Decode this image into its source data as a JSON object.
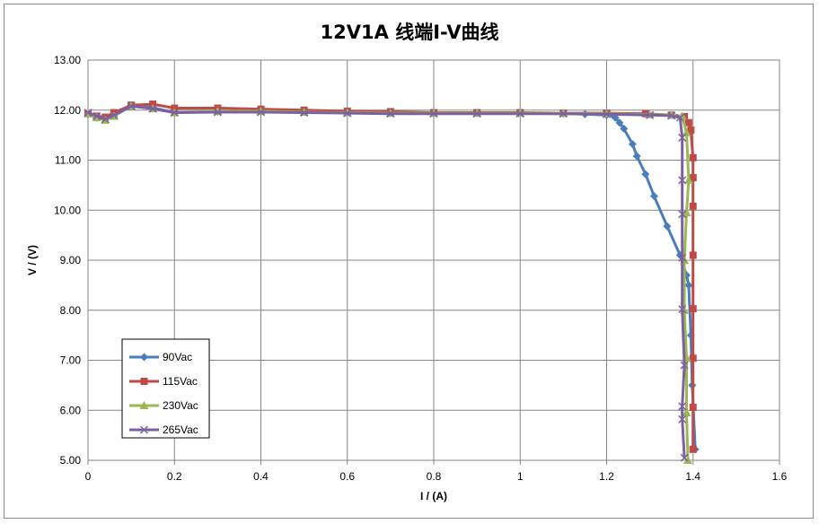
{
  "chart_data": {
    "type": "line",
    "title": "12V1A 线端I-V曲线",
    "xlabel": "I / (A)",
    "ylabel": "V / (V)",
    "xlim": [
      0,
      1.6
    ],
    "ylim": [
      5,
      13
    ],
    "x_ticks": [
      {
        "value": 0,
        "label": "0"
      },
      {
        "value": 0.2,
        "label": "0.2"
      },
      {
        "value": 0.4,
        "label": "0.4"
      },
      {
        "value": 0.6,
        "label": "0.6"
      },
      {
        "value": 0.8,
        "label": "0.8"
      },
      {
        "value": 1,
        "label": "1"
      },
      {
        "value": 1.2,
        "label": "1.2"
      },
      {
        "value": 1.4,
        "label": "1.4"
      },
      {
        "value": 1.6,
        "label": "1.6"
      }
    ],
    "y_ticks": [
      {
        "value": 5,
        "label": "5.00"
      },
      {
        "value": 6,
        "label": "6.00"
      },
      {
        "value": 7,
        "label": "7.00"
      },
      {
        "value": 8,
        "label": "8.00"
      },
      {
        "value": 9,
        "label": "9.00"
      },
      {
        "value": 10,
        "label": "10.00"
      },
      {
        "value": 11,
        "label": "11.00"
      },
      {
        "value": 12,
        "label": "12.00"
      },
      {
        "value": 13,
        "label": "13.00"
      }
    ],
    "grid": true,
    "legend_position": "bottom-left",
    "series": [
      {
        "name": "90Vac",
        "color": "#4a7ebb",
        "marker": "diamond",
        "points": [
          [
            0,
            11.92
          ],
          [
            0.02,
            11.85
          ],
          [
            0.04,
            11.82
          ],
          [
            0.06,
            11.88
          ],
          [
            0.1,
            12.1
          ],
          [
            0.15,
            12.05
          ],
          [
            0.2,
            11.95
          ],
          [
            0.3,
            11.97
          ],
          [
            0.4,
            11.97
          ],
          [
            0.5,
            11.96
          ],
          [
            0.6,
            11.95
          ],
          [
            0.7,
            11.94
          ],
          [
            0.8,
            11.94
          ],
          [
            0.9,
            11.94
          ],
          [
            1.0,
            11.94
          ],
          [
            1.1,
            11.93
          ],
          [
            1.15,
            11.92
          ],
          [
            1.2,
            11.9
          ],
          [
            1.22,
            11.85
          ],
          [
            1.23,
            11.75
          ],
          [
            1.24,
            11.63
          ],
          [
            1.26,
            11.32
          ],
          [
            1.27,
            11.08
          ],
          [
            1.29,
            10.72
          ],
          [
            1.31,
            10.28
          ],
          [
            1.34,
            9.68
          ],
          [
            1.37,
            9.1
          ],
          [
            1.385,
            8.7
          ],
          [
            1.39,
            8.5
          ],
          [
            1.395,
            7.5
          ],
          [
            1.398,
            6.5
          ],
          [
            1.405,
            5.22
          ]
        ]
      },
      {
        "name": "115Vac",
        "color": "#be4b48",
        "marker": "square",
        "points": [
          [
            0,
            11.93
          ],
          [
            0.02,
            11.88
          ],
          [
            0.04,
            11.86
          ],
          [
            0.06,
            11.95
          ],
          [
            0.1,
            12.1
          ],
          [
            0.15,
            12.12
          ],
          [
            0.2,
            12.04
          ],
          [
            0.3,
            12.04
          ],
          [
            0.4,
            12.02
          ],
          [
            0.5,
            12.0
          ],
          [
            0.6,
            11.98
          ],
          [
            0.7,
            11.97
          ],
          [
            0.8,
            11.95
          ],
          [
            0.9,
            11.95
          ],
          [
            1.0,
            11.95
          ],
          [
            1.1,
            11.94
          ],
          [
            1.2,
            11.94
          ],
          [
            1.29,
            11.93
          ],
          [
            1.35,
            11.9
          ],
          [
            1.38,
            11.87
          ],
          [
            1.39,
            11.75
          ],
          [
            1.395,
            11.6
          ],
          [
            1.4,
            11.05
          ],
          [
            1.4,
            10.65
          ],
          [
            1.4,
            10.08
          ],
          [
            1.4,
            9.1
          ],
          [
            1.4,
            8.03
          ],
          [
            1.4,
            7.04
          ],
          [
            1.4,
            6.06
          ],
          [
            1.4,
            5.22
          ]
        ]
      },
      {
        "name": "230Vac",
        "color": "#98b954",
        "marker": "triangle",
        "points": [
          [
            0,
            11.93
          ],
          [
            0.02,
            11.85
          ],
          [
            0.04,
            11.8
          ],
          [
            0.06,
            11.88
          ],
          [
            0.1,
            12.08
          ],
          [
            0.15,
            12.03
          ],
          [
            0.2,
            11.95
          ],
          [
            0.3,
            11.98
          ],
          [
            0.4,
            11.98
          ],
          [
            0.5,
            11.96
          ],
          [
            0.6,
            11.95
          ],
          [
            0.7,
            11.94
          ],
          [
            0.8,
            11.94
          ],
          [
            0.9,
            11.94
          ],
          [
            1.0,
            11.94
          ],
          [
            1.1,
            11.94
          ],
          [
            1.2,
            11.93
          ],
          [
            1.3,
            11.91
          ],
          [
            1.35,
            11.9
          ],
          [
            1.375,
            11.88
          ],
          [
            1.385,
            11.55
          ],
          [
            1.39,
            10.6
          ],
          [
            1.385,
            9.95
          ],
          [
            1.38,
            9.0
          ],
          [
            1.38,
            8.0
          ],
          [
            1.385,
            7.05
          ],
          [
            1.385,
            5.95
          ],
          [
            1.388,
            5.0
          ]
        ]
      },
      {
        "name": "265Vac",
        "color": "#7d60a0",
        "marker": "x",
        "points": [
          [
            0,
            11.95
          ],
          [
            0.02,
            11.88
          ],
          [
            0.04,
            11.82
          ],
          [
            0.06,
            11.9
          ],
          [
            0.1,
            12.08
          ],
          [
            0.15,
            12.03
          ],
          [
            0.2,
            11.95
          ],
          [
            0.3,
            11.96
          ],
          [
            0.4,
            11.96
          ],
          [
            0.5,
            11.95
          ],
          [
            0.6,
            11.94
          ],
          [
            0.7,
            11.93
          ],
          [
            0.8,
            11.93
          ],
          [
            0.9,
            11.93
          ],
          [
            1.0,
            11.93
          ],
          [
            1.1,
            11.93
          ],
          [
            1.2,
            11.92
          ],
          [
            1.3,
            11.9
          ],
          [
            1.35,
            11.89
          ],
          [
            1.37,
            11.85
          ],
          [
            1.375,
            11.45
          ],
          [
            1.375,
            10.6
          ],
          [
            1.375,
            9.92
          ],
          [
            1.375,
            9.05
          ],
          [
            1.375,
            8.02
          ],
          [
            1.38,
            6.9
          ],
          [
            1.375,
            6.08
          ],
          [
            1.375,
            5.82
          ],
          [
            1.38,
            5.05
          ]
        ]
      }
    ]
  }
}
